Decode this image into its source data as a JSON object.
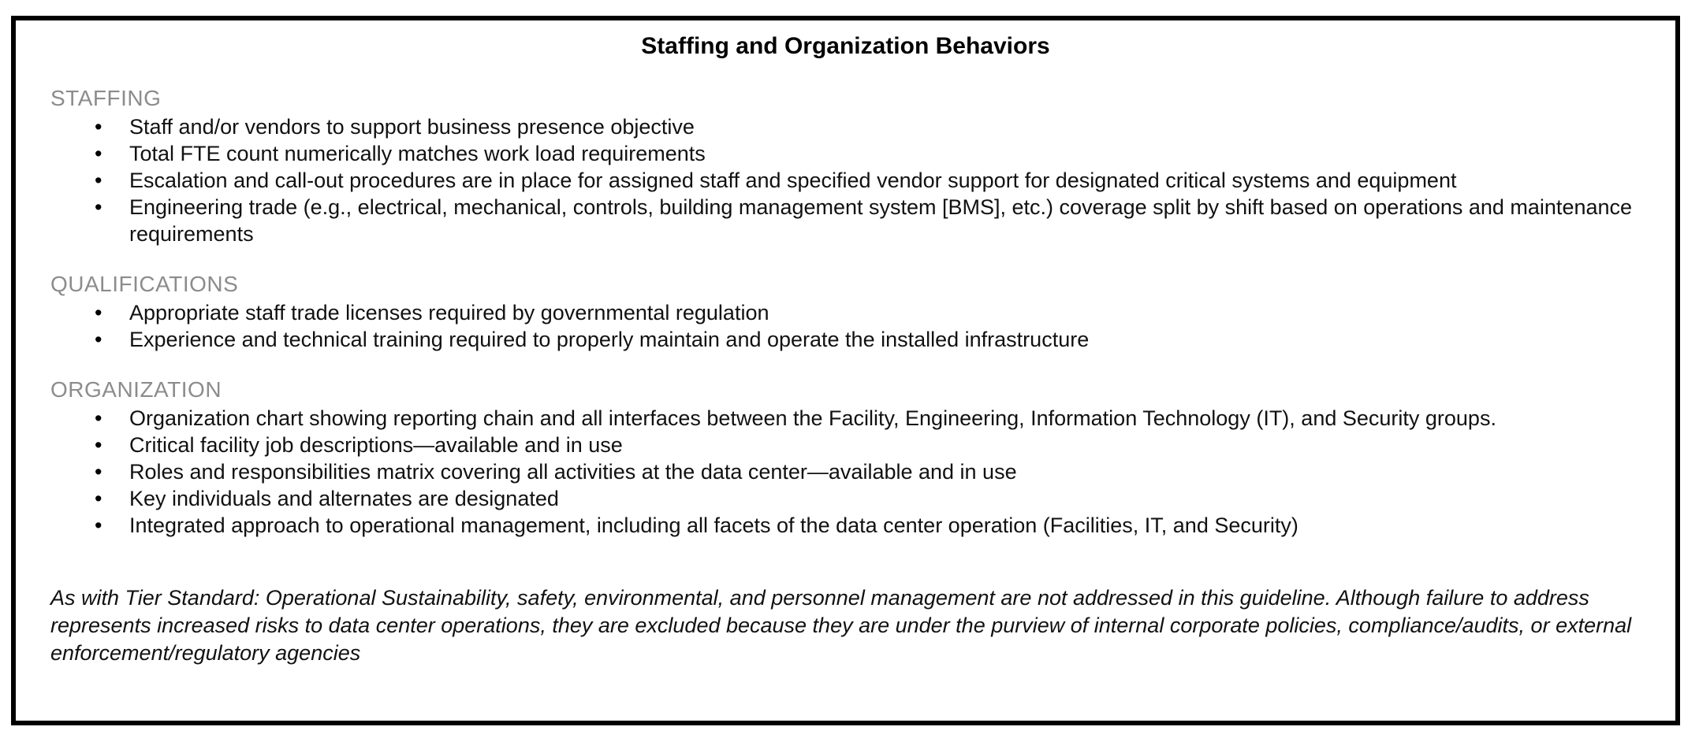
{
  "title": "Staffing and Organization Behaviors",
  "sections": [
    {
      "heading": "STAFFING",
      "bullets": [
        "Staff and/or vendors to support business presence objective",
        "Total FTE count numerically matches work load requirements",
        "Escalation and call-out procedures are in place for assigned staff and specified vendor support for designated critical systems and equipment",
        "Engineering trade (e.g., electrical, mechanical, controls, building management system [BMS], etc.) coverage split by shift based on operations and maintenance requirements"
      ]
    },
    {
      "heading": "QUALIFICATIONS",
      "bullets": [
        "Appropriate staff trade licenses required by governmental regulation",
        "Experience and technical training required to properly maintain and operate the installed infrastructure"
      ]
    },
    {
      "heading": "ORGANIZATION",
      "bullets": [
        "Organization chart showing reporting chain and all interfaces between the Facility, Engineering, Information Technology (IT), and Security groups.",
        "Critical facility job descriptions—available and in use",
        "Roles and responsibilities matrix covering all activities at the data center—available and in use",
        "Key individuals and alternates are designated",
        "Integrated approach to operational management, including all facets of the data center operation (Facilities, IT, and Security)"
      ]
    }
  ],
  "bullet_glyph": "•",
  "footnote": "As with Tier Standard: Operational Sustainability, safety, environmental, and personnel management are not addressed in this guideline. Although failure to address represents increased risks to data center operations, they are excluded because they are under the purview of internal corporate policies, compliance/audits, or external enforcement/regulatory agencies",
  "colors": {
    "border": "#000000",
    "heading": "#8c8c8c",
    "body_text": "#111111",
    "background": "#ffffff"
  }
}
